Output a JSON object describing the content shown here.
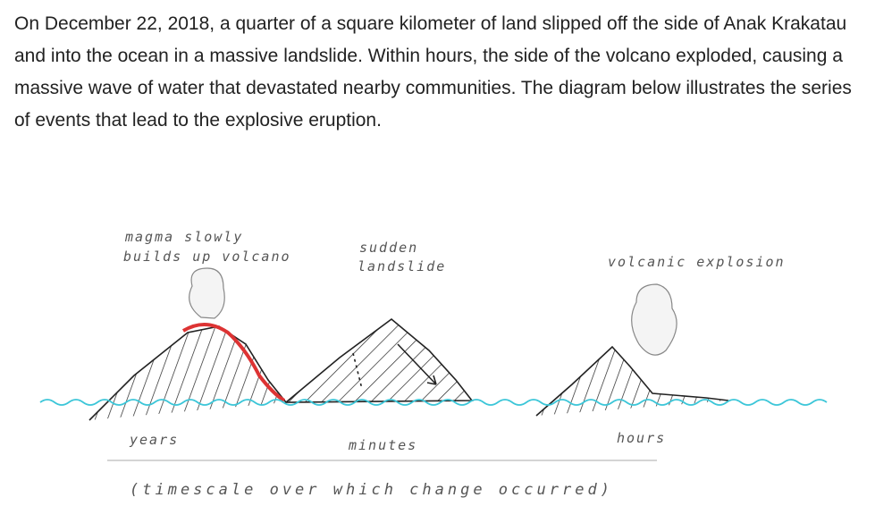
{
  "paragraph": "On December 22, 2018, a quarter of a square kilometer of land slipped off the side of Anak Krakatau and into the ocean in a massive landslide. Within hours, the side of the volcano exploded, causing a massive wave of water that devastated nearby communities. The diagram below illustrates the series of events that lead to the explosive eruption.",
  "diagram": {
    "stages": [
      {
        "label": [
          "magma slowly",
          "builds up volcano"
        ],
        "timescale": "years"
      },
      {
        "label": [
          "sudden",
          "landslide"
        ],
        "timescale": "minutes"
      },
      {
        "label": [
          "volcanic explosion"
        ],
        "timescale": "hours"
      }
    ],
    "caption": "(timescale over which change occurred)"
  }
}
